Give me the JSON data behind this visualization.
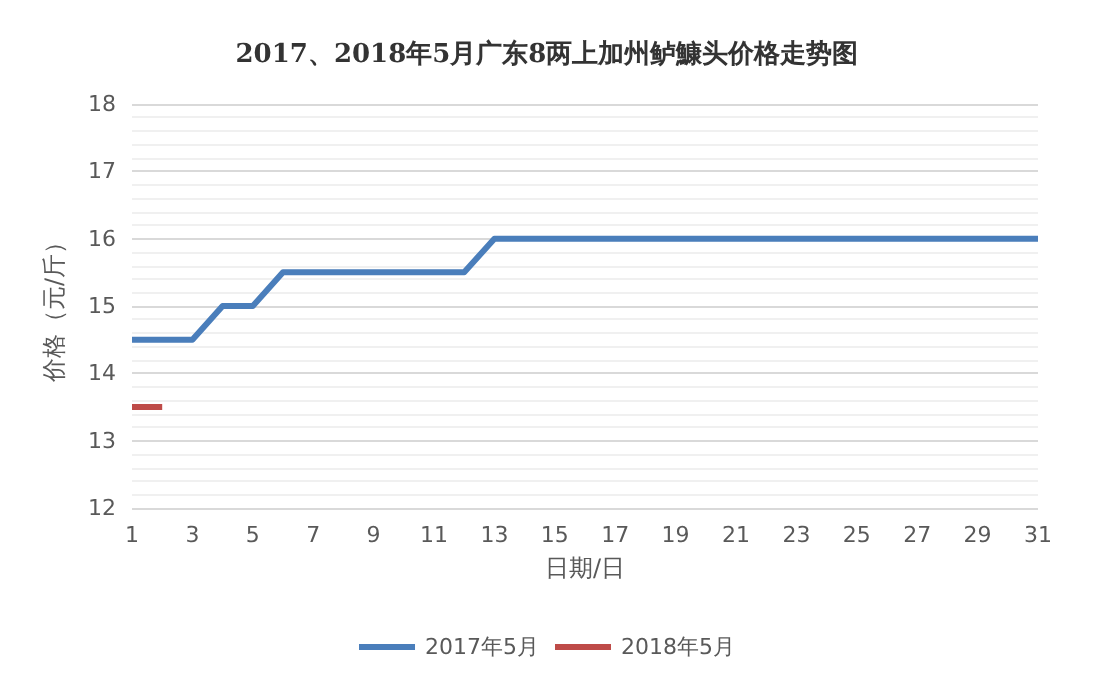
{
  "chart_data": {
    "type": "line",
    "title": "2017、2018年5月广东8两上加州鲈鱇头价格走势图",
    "xlabel": "日期/日",
    "ylabel": "价格（元/斤）",
    "categories": [
      "1",
      null,
      "3",
      null,
      "5",
      null,
      "7",
      null,
      "9",
      null,
      "11",
      null,
      "13",
      null,
      "15",
      null,
      "17",
      null,
      "19",
      null,
      "21",
      null,
      "23",
      null,
      "25",
      null,
      "27",
      null,
      "29",
      null,
      "31"
    ],
    "series": [
      {
        "name": "2017年5月",
        "color": "#4a7ebb",
        "values": [
          14.5,
          14.5,
          14.5,
          15,
          15,
          15.5,
          15.5,
          15.5,
          15.5,
          15.5,
          15.5,
          15.5,
          16,
          16,
          16,
          16,
          16,
          16,
          16,
          16,
          16,
          16,
          16,
          16,
          16,
          16,
          16,
          16,
          16,
          16,
          16
        ]
      },
      {
        "name": "2018年5月",
        "color": "#be4b48",
        "values": [
          13.5,
          13.5,
          null,
          null,
          null,
          null,
          null,
          null,
          null,
          null,
          null,
          null,
          null,
          null,
          null,
          null,
          null,
          null,
          null,
          null,
          null,
          null,
          null,
          null,
          null,
          null,
          null,
          null,
          null,
          null,
          null
        ]
      }
    ],
    "ylim": [
      12,
      18
    ],
    "yticks": [
      12,
      13,
      14,
      15,
      16,
      17,
      18
    ],
    "grid": "y",
    "legend": "bottom",
    "marker": "none",
    "line_style": "solid"
  }
}
